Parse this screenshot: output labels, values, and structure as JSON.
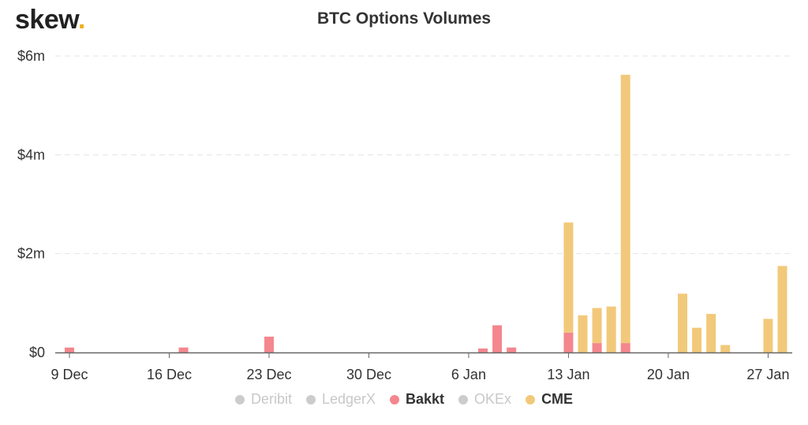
{
  "logo": {
    "text": "skew",
    "dot": "."
  },
  "legend": [
    {
      "label": "Deribit",
      "color": "#cccccc",
      "active": false
    },
    {
      "label": "LedgerX",
      "color": "#cccccc",
      "active": false
    },
    {
      "label": "Bakkt",
      "color": "#f4868e",
      "active": true
    },
    {
      "label": "OKEx",
      "color": "#cccccc",
      "active": false
    },
    {
      "label": "CME",
      "color": "#f2c97a",
      "active": true
    }
  ],
  "chart_data": {
    "type": "bar",
    "stacked": true,
    "title": "BTC Options Volumes",
    "ylabel": "",
    "xlabel": "",
    "ylim": [
      0,
      6
    ],
    "yticks": [
      {
        "value": 0,
        "label": "$0"
      },
      {
        "value": 2,
        "label": "$2m"
      },
      {
        "value": 4,
        "label": "$4m"
      },
      {
        "value": 6,
        "label": "$6m"
      }
    ],
    "xticks": [
      {
        "day": 0,
        "label": "9 Dec"
      },
      {
        "day": 7,
        "label": "16 Dec"
      },
      {
        "day": 14,
        "label": "23 Dec"
      },
      {
        "day": 21,
        "label": "30 Dec"
      },
      {
        "day": 28,
        "label": "6 Jan"
      },
      {
        "day": 35,
        "label": "13 Jan"
      },
      {
        "day": 42,
        "label": "20 Jan"
      },
      {
        "day": 49,
        "label": "27 Jan"
      }
    ],
    "grid": true,
    "legend_position": "bottom",
    "series": [
      {
        "name": "Bakkt",
        "color": "#f4868e",
        "points": [
          {
            "day": 0,
            "value": 0.1
          },
          {
            "day": 8,
            "value": 0.1
          },
          {
            "day": 14,
            "value": 0.32
          },
          {
            "day": 29,
            "value": 0.08
          },
          {
            "day": 30,
            "value": 0.55
          },
          {
            "day": 31,
            "value": 0.1
          },
          {
            "day": 35,
            "value": 0.4
          },
          {
            "day": 37,
            "value": 0.19
          },
          {
            "day": 39,
            "value": 0.19
          }
        ]
      },
      {
        "name": "CME",
        "color": "#f2c97a",
        "points": [
          {
            "day": 35,
            "value": 2.23
          },
          {
            "day": 36,
            "value": 0.75
          },
          {
            "day": 37,
            "value": 0.71
          },
          {
            "day": 38,
            "value": 0.93
          },
          {
            "day": 39,
            "value": 5.43
          },
          {
            "day": 43,
            "value": 1.19
          },
          {
            "day": 44,
            "value": 0.5
          },
          {
            "day": 45,
            "value": 0.78
          },
          {
            "day": 46,
            "value": 0.15
          },
          {
            "day": 49,
            "value": 0.68
          },
          {
            "day": 50,
            "value": 1.75
          }
        ]
      }
    ]
  }
}
